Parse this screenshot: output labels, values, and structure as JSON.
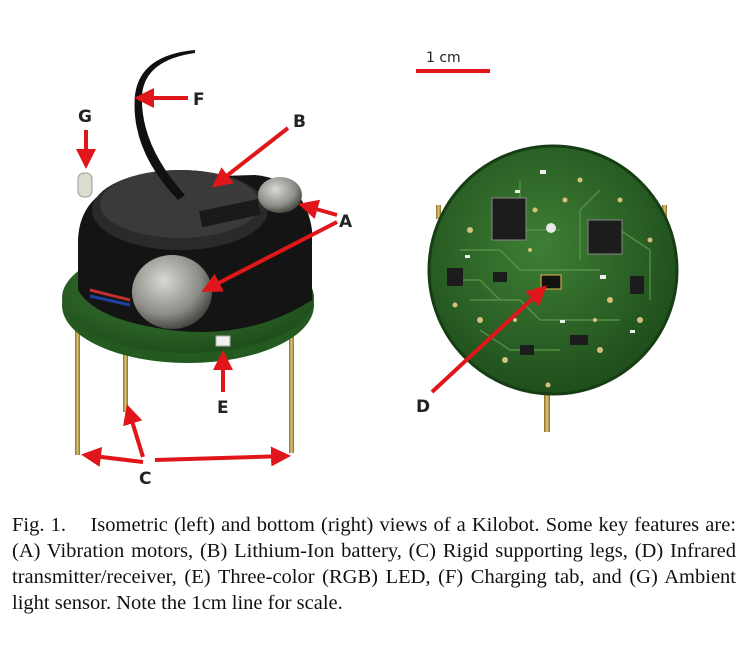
{
  "figure": {
    "scale_bar": {
      "label": "1 cm",
      "color": "#e0161b"
    },
    "labels": {
      "a": "A",
      "b": "B",
      "c": "C",
      "d": "D",
      "e": "E",
      "f": "F",
      "g": "G"
    },
    "arrow_color": "#e0161b",
    "pcb_color": "#2f6b2a"
  },
  "caption": {
    "lead": "Fig. 1.",
    "text": "Isometric (left) and bottom (right) views of a Kilobot. Some key features are: (A) Vibration motors, (B) Lithium-Ion battery, (C) Rigid supporting legs, (D) Infrared transmitter/receiver, (E) Three-color (RGB) LED, (F) Charging tab, and (G) Ambient light sensor. Note the 1cm line for scale."
  }
}
